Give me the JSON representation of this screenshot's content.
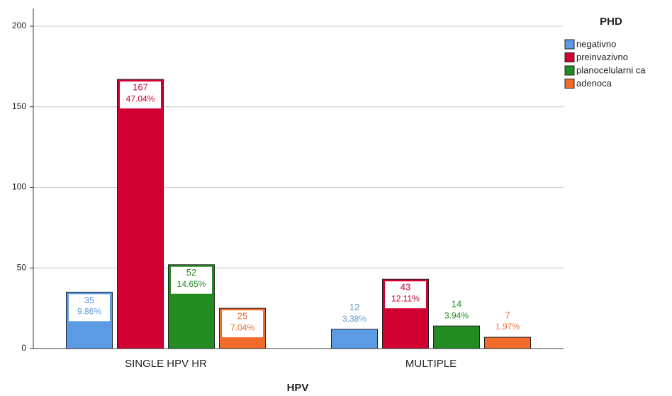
{
  "chart_data": {
    "type": "bar",
    "x_label": "HPV",
    "legend_title": "PHD",
    "legend": "right",
    "categories": [
      "SINGLE HPV HR",
      "MULTIPLE"
    ],
    "series": [
      {
        "name": "negativno",
        "color": "#5b9be3",
        "label_color": "#5b9bd5",
        "values": [
          35,
          12
        ],
        "percent_labels": [
          "9.86%",
          "3.38%"
        ]
      },
      {
        "name": "preinvazivno",
        "color": "#d20032",
        "label_color": "#d20032",
        "values": [
          167,
          43
        ],
        "percent_labels": [
          "47.04%",
          "12.11%"
        ]
      },
      {
        "name": "planocelularni ca",
        "color": "#228b22",
        "label_color": "#228b22",
        "values": [
          52,
          14
        ],
        "percent_labels": [
          "14.65%",
          "3.94%"
        ]
      },
      {
        "name": "adenoca",
        "color": "#f26b2a",
        "label_color": "#f26b2a",
        "values": [
          25,
          7
        ],
        "percent_labels": [
          "7.04%",
          "1.97%"
        ]
      }
    ],
    "ylim": [
      0,
      211
    ],
    "yticks": [
      0,
      50,
      100,
      150,
      200
    ],
    "grid": true
  }
}
